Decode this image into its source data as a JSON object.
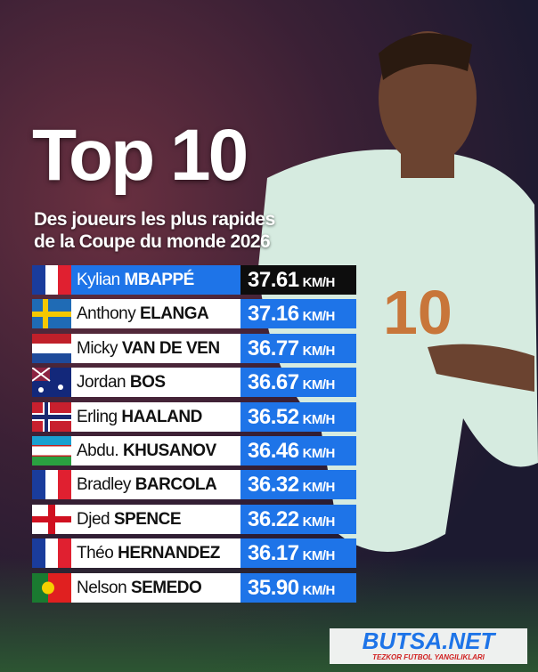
{
  "header": {
    "title": "Top 10",
    "subtitle_line1": "Des joueurs les plus rapides",
    "subtitle_line2": "de la Coupe du monde 2026"
  },
  "speed_unit": "KM/H",
  "rows": [
    {
      "first": "Kylian",
      "last": "MBAPPÉ",
      "speed": "37.61"
    },
    {
      "first": "Anthony",
      "last": "ELANGA",
      "speed": "37.16"
    },
    {
      "first": "Micky",
      "last": "VAN DE VEN",
      "speed": "36.77"
    },
    {
      "first": "Jordan",
      "last": "BOS",
      "speed": "36.67"
    },
    {
      "first": "Erling",
      "last": "HAALAND",
      "speed": "36.52"
    },
    {
      "first": "Abdu.",
      "last": "KHUSANOV",
      "speed": "36.46"
    },
    {
      "first": "Bradley",
      "last": "BARCOLA",
      "speed": "36.32"
    },
    {
      "first": "Djed",
      "last": "SPENCE",
      "speed": "36.22"
    },
    {
      "first": "Théo",
      "last": "HERNANDEZ",
      "speed": "36.17"
    },
    {
      "first": "Nelson",
      "last": "SEMEDO",
      "speed": "35.90"
    }
  ],
  "watermark": {
    "brand": "BUTSA.NET",
    "tagline": "TEZKOR FUTBOL YANGILIKLARI"
  }
}
